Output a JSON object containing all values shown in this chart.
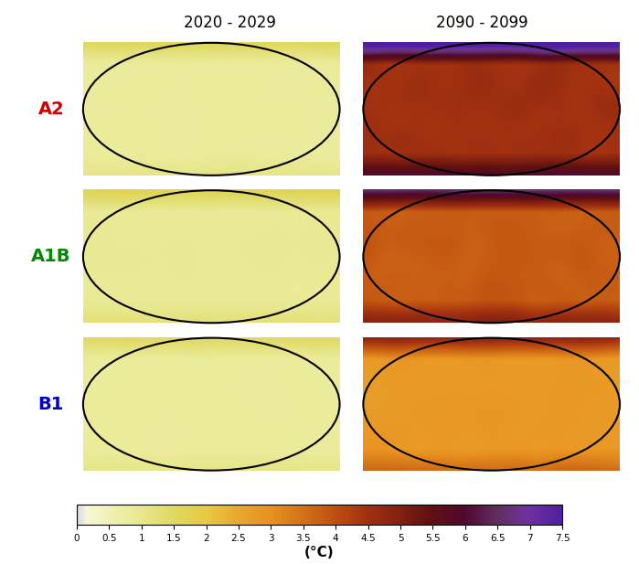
{
  "title_left": "2020 - 2029",
  "title_right": "2090 - 2099",
  "row_labels": [
    "A2",
    "A1B",
    "B1"
  ],
  "row_label_colors": [
    "#cc0000",
    "#008800",
    "#0000cc"
  ],
  "colorbar_ticks": [
    0,
    0.5,
    1,
    1.5,
    2,
    2.5,
    3,
    3.5,
    4,
    4.5,
    5,
    5.5,
    6,
    6.5,
    7,
    7.5
  ],
  "colorbar_label": "(°C)",
  "background_color": "#ffffff",
  "colormap_colors": [
    "#d0dce8",
    "#f5f5c8",
    "#f0f0a0",
    "#e8e878",
    "#e0d060",
    "#e8c050",
    "#e8a840",
    "#e09030",
    "#d07020",
    "#c05010",
    "#a03010",
    "#802010",
    "#601010",
    "#500020",
    "#602060",
    "#7030a0",
    "#5a1a8a"
  ],
  "scenario_data": {
    "A2_2020": {
      "mean_temp": 0.8,
      "arctic_boost": 1.5,
      "land_boost": 1.2
    },
    "A2_2090": {
      "mean_temp": 4.5,
      "arctic_boost": 7.0,
      "land_boost": 1.5
    },
    "A1B_2020": {
      "mean_temp": 0.9,
      "arctic_boost": 1.6,
      "land_boost": 1.2
    },
    "A1B_2090": {
      "mean_temp": 3.8,
      "arctic_boost": 5.5,
      "land_boost": 1.5
    },
    "B1_2020": {
      "mean_temp": 0.8,
      "arctic_boost": 1.4,
      "land_boost": 1.2
    },
    "B1_2090": {
      "mean_temp": 2.8,
      "arctic_boost": 4.0,
      "land_boost": 1.4
    }
  }
}
